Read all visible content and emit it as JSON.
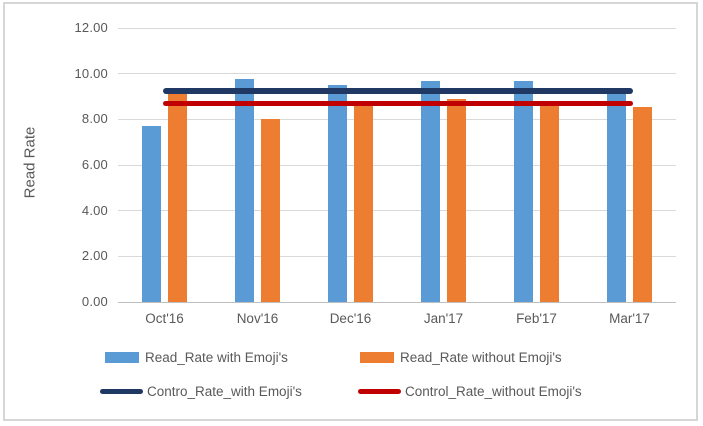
{
  "window": {
    "background_color": "#FFFFFF",
    "frame_border_color": "#D6D6D6"
  },
  "chart_data": {
    "type": "bar",
    "title": "",
    "xlabel": "",
    "ylabel": "Read Rate",
    "categories": [
      "Oct'16",
      "Nov'16",
      "Dec'16",
      "Jan'17",
      "Feb'17",
      "Mar'17"
    ],
    "series": [
      {
        "name": "Read_Rate with Emoji's",
        "kind": "bar",
        "color": "#5B9BD5",
        "values": [
          7.7,
          9.75,
          9.5,
          9.7,
          9.7,
          9.3
        ]
      },
      {
        "name": "Read_Rate without Emoji's",
        "kind": "bar",
        "color": "#ED7D31",
        "values": [
          9.2,
          8.0,
          8.6,
          8.9,
          8.6,
          8.55
        ]
      },
      {
        "name": "Contro_Rate_with Emoji's",
        "kind": "line",
        "color": "#1F3864",
        "values": [
          9.25,
          9.25,
          9.25,
          9.25,
          9.25,
          9.25
        ]
      },
      {
        "name": "Control_Rate_without Emoji's",
        "kind": "line",
        "color": "#C00000",
        "values": [
          8.7,
          8.7,
          8.7,
          8.7,
          8.7,
          8.7
        ]
      }
    ],
    "ylim": [
      0,
      12
    ],
    "yticks": [
      "0.00",
      "2.00",
      "4.00",
      "6.00",
      "8.00",
      "10.00",
      "12.00"
    ],
    "grid": "horizontal",
    "legend_position": "bottom",
    "colors": {
      "gridline": "#D9D9D9",
      "axis_line": "#BFBFBF",
      "text": "#595959"
    }
  }
}
